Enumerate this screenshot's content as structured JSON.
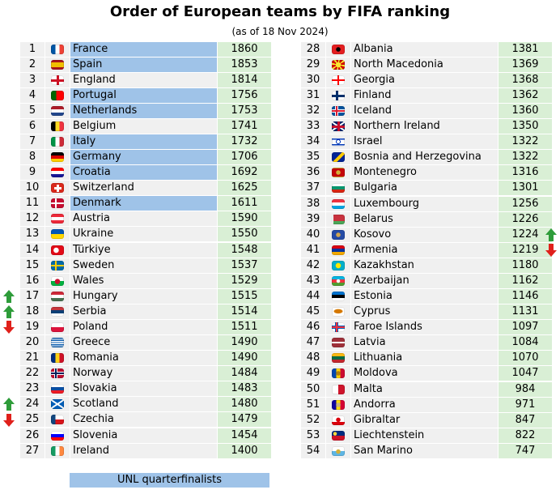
{
  "title": "Order of European teams by FIFA ranking",
  "subtitle": "(as of 18 Nov 2024)",
  "legend_label": "UNL quarterfinalists",
  "colors": {
    "qf_highlight": "#9fc3e8",
    "points_cell": "#d9efd5",
    "row_cell": "#f0f0f0",
    "arrow_up": "#2e9c3a",
    "arrow_down": "#e0201b"
  },
  "chart_data": {
    "type": "table",
    "columns": [
      "rank",
      "flag",
      "team",
      "points"
    ],
    "rows": [
      {
        "rank": "1",
        "team": "France",
        "points": "1860",
        "qf": true,
        "flag": "france-flag"
      },
      {
        "rank": "2",
        "team": "Spain",
        "points": "1853",
        "qf": true,
        "flag": "spain-flag"
      },
      {
        "rank": "3",
        "team": "England",
        "points": "1814",
        "qf": false,
        "flag": "england-flag"
      },
      {
        "rank": "4",
        "team": "Portugal",
        "points": "1756",
        "qf": true,
        "flag": "portugal-flag"
      },
      {
        "rank": "5",
        "team": "Netherlands",
        "points": "1753",
        "qf": true,
        "flag": "netherlands-flag"
      },
      {
        "rank": "6",
        "team": "Belgium",
        "points": "1741",
        "qf": false,
        "flag": "belgium-flag"
      },
      {
        "rank": "7",
        "team": "Italy",
        "points": "1732",
        "qf": true,
        "flag": "italy-flag"
      },
      {
        "rank": "8",
        "team": "Germany",
        "points": "1706",
        "qf": true,
        "flag": "germany-flag"
      },
      {
        "rank": "9",
        "team": "Croatia",
        "points": "1692",
        "qf": true,
        "flag": "croatia-flag"
      },
      {
        "rank": "10",
        "team": "Switzerland",
        "points": "1625",
        "qf": false,
        "flag": "switzerland-flag"
      },
      {
        "rank": "11",
        "team": "Denmark",
        "points": "1611",
        "qf": true,
        "flag": "denmark-flag"
      },
      {
        "rank": "12",
        "team": "Austria",
        "points": "1590",
        "qf": false,
        "flag": "austria-flag"
      },
      {
        "rank": "13",
        "team": "Ukraine",
        "points": "1550",
        "qf": false,
        "separator": true,
        "flag": "ukraine-flag"
      },
      {
        "rank": "14",
        "team": "Türkiye",
        "points": "1548",
        "qf": false,
        "flag": "turkiye-flag"
      },
      {
        "rank": "15",
        "team": "Sweden",
        "points": "1537",
        "qf": false,
        "flag": "sweden-flag"
      },
      {
        "rank": "16",
        "team": "Wales",
        "points": "1529",
        "qf": false,
        "flag": "wales-flag"
      },
      {
        "rank": "17",
        "team": "Hungary",
        "points": "1515",
        "qf": false,
        "arrow": "up",
        "flag": "hungary-flag"
      },
      {
        "rank": "18",
        "team": "Serbia",
        "points": "1514",
        "qf": false,
        "arrow": "up",
        "flag": "serbia-flag"
      },
      {
        "rank": "19",
        "team": "Poland",
        "points": "1511",
        "qf": false,
        "arrow": "down",
        "flag": "poland-flag"
      },
      {
        "rank": "20",
        "team": "Greece",
        "points": "1490",
        "qf": false,
        "flag": "greece-flag"
      },
      {
        "rank": "21",
        "team": "Romania",
        "points": "1490",
        "qf": false,
        "flag": "romania-flag"
      },
      {
        "rank": "22",
        "team": "Norway",
        "points": "1484",
        "qf": false,
        "flag": "norway-flag"
      },
      {
        "rank": "23",
        "team": "Slovakia",
        "points": "1483",
        "qf": false,
        "flag": "slovakia-flag"
      },
      {
        "rank": "24",
        "team": "Scotland",
        "points": "1480",
        "qf": false,
        "arrow": "up",
        "flag": "scotland-flag"
      },
      {
        "rank": "25",
        "team": "Czechia",
        "points": "1479",
        "qf": false,
        "arrow": "down",
        "separator": true,
        "flag": "czechia-flag"
      },
      {
        "rank": "26",
        "team": "Slovenia",
        "points": "1454",
        "qf": false,
        "flag": "slovenia-flag"
      },
      {
        "rank": "27",
        "team": "Ireland",
        "points": "1400",
        "qf": false,
        "flag": "ireland-flag"
      },
      {
        "rank": "28",
        "team": "Albania",
        "points": "1381",
        "qf": false,
        "flag": "albania-flag"
      },
      {
        "rank": "29",
        "team": "North Macedonia",
        "points": "1369",
        "qf": false,
        "flag": "north-macedonia-flag"
      },
      {
        "rank": "30",
        "team": "Georgia",
        "points": "1368",
        "qf": false,
        "flag": "georgia-flag"
      },
      {
        "rank": "31",
        "team": "Finland",
        "points": "1362",
        "qf": false,
        "flag": "finland-flag"
      },
      {
        "rank": "32",
        "team": "Iceland",
        "points": "1360",
        "qf": false,
        "flag": "iceland-flag"
      },
      {
        "rank": "33",
        "team": "Northern Ireland",
        "points": "1350",
        "qf": false,
        "flag": "northern-ireland-flag"
      },
      {
        "rank": "34",
        "team": "Israel",
        "points": "1322",
        "qf": false,
        "flag": "israel-flag"
      },
      {
        "rank": "35",
        "team": "Bosnia and Herzegovina",
        "points": "1322",
        "qf": false,
        "flag": "bosnia-flag"
      },
      {
        "rank": "36",
        "team": "Montenegro",
        "points": "1316",
        "qf": false,
        "flag": "montenegro-flag"
      },
      {
        "rank": "37",
        "team": "Bulgaria",
        "points": "1301",
        "qf": false,
        "separator": true,
        "flag": "bulgaria-flag"
      },
      {
        "rank": "38",
        "team": "Luxembourg",
        "points": "1256",
        "qf": false,
        "flag": "luxembourg-flag"
      },
      {
        "rank": "39",
        "team": "Belarus",
        "points": "1226",
        "qf": false,
        "flag": "belarus-flag"
      },
      {
        "rank": "40",
        "team": "Kosovo",
        "points": "1224",
        "qf": false,
        "arrow": "up",
        "flag": "kosovo-flag"
      },
      {
        "rank": "41",
        "team": "Armenia",
        "points": "1219",
        "qf": false,
        "arrow": "down",
        "flag": "armenia-flag"
      },
      {
        "rank": "42",
        "team": "Kazakhstan",
        "points": "1180",
        "qf": false,
        "flag": "kazakhstan-flag"
      },
      {
        "rank": "43",
        "team": "Azerbaijan",
        "points": "1162",
        "qf": false,
        "flag": "azerbaijan-flag"
      },
      {
        "rank": "44",
        "team": "Estonia",
        "points": "1146",
        "qf": false,
        "flag": "estonia-flag"
      },
      {
        "rank": "45",
        "team": "Cyprus",
        "points": "1131",
        "qf": false,
        "flag": "cyprus-flag"
      },
      {
        "rank": "46",
        "team": "Faroe Islands",
        "points": "1097",
        "qf": false,
        "flag": "faroe-islands-flag"
      },
      {
        "rank": "47",
        "team": "Latvia",
        "points": "1084",
        "qf": false,
        "flag": "latvia-flag"
      },
      {
        "rank": "48",
        "team": "Lithuania",
        "points": "1070",
        "qf": false,
        "flag": "lithuania-flag"
      },
      {
        "rank": "49",
        "team": "Moldova",
        "points": "1047",
        "qf": false,
        "separator": true,
        "flag": "moldova-flag"
      },
      {
        "rank": "50",
        "team": "Malta",
        "points": "984",
        "qf": false,
        "flag": "malta-flag"
      },
      {
        "rank": "51",
        "team": "Andorra",
        "points": "971",
        "qf": false,
        "flag": "andorra-flag"
      },
      {
        "rank": "52",
        "team": "Gibraltar",
        "points": "847",
        "qf": false,
        "flag": "gibraltar-flag"
      },
      {
        "rank": "53",
        "team": "Liechtenstein",
        "points": "822",
        "qf": false,
        "flag": "liechtenstein-flag"
      },
      {
        "rank": "54",
        "team": "San Marino",
        "points": "747",
        "qf": false,
        "flag": "san-marino-flag"
      }
    ]
  }
}
